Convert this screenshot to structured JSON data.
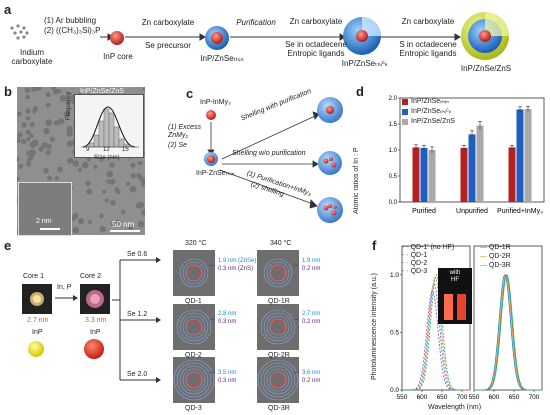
{
  "panel_a": {
    "label": "a",
    "reagent_1": "(1) Ar bubbling",
    "reagent_2": "(2) ((CH₃)₃Si)₃P",
    "start": "Indium\ncarboxylate",
    "step1_top": "Zn carboxylate",
    "step1_bottom": "Se precursor",
    "step2_top": "Purification",
    "step3_top": "Zn carboxylate",
    "step3_mid": "Se in octadecene",
    "step3_bottom": "Entropic ligands",
    "step4_top": "Zn carboxylate",
    "step4_mid": "S in octadecene",
    "step4_bottom": "Entropic ligands",
    "product1": "InP core",
    "product2": "InP/ZnSeₜₕᵢₙ",
    "product3": "InP/ZnSeₜₕᵢᶜₖ",
    "product4": "InP/ZnSe/ZnS"
  },
  "panel_b": {
    "label": "b",
    "inset_title": "InP/ZnSe/ZnS",
    "ylabel": "Frequency",
    "xlabel": "Size (nm)",
    "xticks": [
      "9",
      "12",
      "15"
    ],
    "hr_scale": "2 nm",
    "scale": "50 nm"
  },
  "panel_c": {
    "label": "c",
    "start": "InP-InMy₃",
    "cond1": "(1) Excess\nZnMy₂",
    "cond2": "(2) Se",
    "mid": "InP-ZnSeₜₕᵢₙ",
    "path1": "Shelling with purification",
    "path2": "Shelling w/o purification",
    "path3a": "(1) Purification+InMy₃",
    "path3b": "(2) shelling"
  },
  "panel_d": {
    "label": "d",
    "colors": [
      "#b22222",
      "#1f5fbf",
      "#a9a9a9"
    ],
    "ticks": [
      "0.0",
      "0.5",
      "1.0",
      "1.5",
      "2.0"
    ]
  },
  "chart_data": {
    "type": "bar",
    "categories": [
      "Purified",
      "Unpurified",
      "Purified+InMy₃"
    ],
    "series": [
      {
        "name": "InP/ZnSeₜₕᵢₙ",
        "values": [
          1.05,
          1.04,
          1.05
        ],
        "errors": [
          0.05,
          0.05,
          0.04
        ]
      },
      {
        "name": "InP/ZnSeₜₕᵢᶜₖ",
        "values": [
          1.04,
          1.3,
          1.78
        ],
        "errors": [
          0.05,
          0.07,
          0.05
        ]
      },
      {
        "name": "InP/ZnSe/ZnS",
        "values": [
          1.0,
          1.47,
          1.79
        ],
        "errors": [
          0.06,
          0.08,
          0.05
        ]
      }
    ],
    "xlabel": "",
    "ylabel": "Atomic ratios of In : P",
    "ylim": [
      0,
      2.0
    ]
  },
  "panel_e": {
    "label": "e",
    "core1": "Core 1",
    "core2": "Core 2",
    "arrow_label": "In, P",
    "core1_size": "2.7 nm",
    "core2_size": "3.3 nm",
    "inp1": "InP",
    "inp2": "InP",
    "temp1": "320 °C",
    "temp2": "340 °C",
    "se1": "Se 0.6",
    "se2": "Se 1.2",
    "se3": "Se 2.0",
    "qd1_a": "1.9 nm (ZnSe)",
    "qd1_b": "0.3 nm (ZnS)",
    "qd1r_a": "1.9 nm",
    "qd1r_b": "0.2 nm",
    "qd2_a": "2.8 nm",
    "qd2_b": "0.3 nm",
    "qd2r_a": "2.7 nm",
    "qd2r_b": "0.2 nm",
    "qd3_a": "3.5 nm",
    "qd3_b": "0.3 nm",
    "qd3r_a": "3.6 nm",
    "qd3r_b": "0.2 nm",
    "name1": "QD-1",
    "name1r": "QD-1R",
    "name2": "QD-2",
    "name2r": "QD-2R",
    "name3": "QD-3",
    "name3r": "QD-3R"
  },
  "panel_f": {
    "label": "f",
    "ylabel": "Photoluminescence intensity (a.u.)",
    "xlabel": "Wavelength (nm)",
    "yticks": [
      "0.0",
      "0.5",
      "1.0"
    ],
    "xticks": [
      "550",
      "600",
      "650",
      "700"
    ],
    "left_legend": [
      "QD-1' (no HF)",
      "QD-1",
      "QD-2",
      "QD-3"
    ],
    "right_legend": [
      "QD-1R",
      "QD-2R",
      "QD-3R"
    ],
    "inset_label": "with\nHF"
  }
}
